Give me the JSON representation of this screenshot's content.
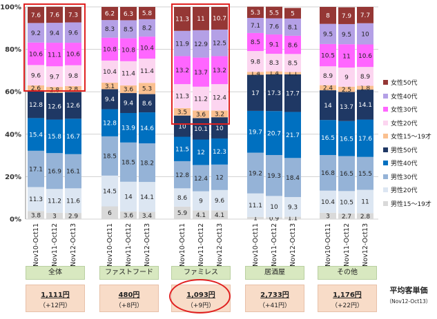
{
  "chart_data": {
    "type": "bar",
    "stacked": true,
    "ylim": [
      0,
      100
    ],
    "yticks": [
      "0%",
      "20%",
      "40%",
      "60%",
      "80%",
      "100%"
    ],
    "bar_labels": [
      "Nov10-Oct11",
      "Nov11-Oct12",
      "Nov12-Oct13"
    ],
    "series": [
      {
        "name": "男性15～19才",
        "color": "#d9d9d9"
      },
      {
        "name": "男性20代",
        "color": "#dce6f2"
      },
      {
        "name": "男性30代",
        "color": "#95b3d7"
      },
      {
        "name": "男性40代",
        "color": "#0070c0"
      },
      {
        "name": "男性50代",
        "color": "#1f3864"
      },
      {
        "name": "女性15～19才",
        "color": "#fac090"
      },
      {
        "name": "女性20代",
        "color": "#fcd5f0"
      },
      {
        "name": "女性30代",
        "color": "#ff66ff"
      },
      {
        "name": "女性40代",
        "color": "#b4a0e6"
      },
      {
        "name": "女性50代",
        "color": "#953735"
      }
    ],
    "groups": [
      {
        "name": "全体",
        "bars": [
          [
            3.8,
            11.3,
            17.1,
            15.4,
            12.8,
            2.6,
            9.6,
            10.6,
            9.2,
            7.6
          ],
          [
            3.0,
            11.2,
            16.9,
            15.8,
            12.6,
            2.8,
            9.7,
            11.1,
            9.4,
            7.6
          ],
          [
            2.9,
            11.6,
            16.1,
            16.7,
            12.6,
            2.8,
            9.8,
            10.6,
            9.6,
            7.3
          ]
        ]
      },
      {
        "name": "ファストフード",
        "bars": [
          [
            6.0,
            14.5,
            18.5,
            12.8,
            9.4,
            3.1,
            10.4,
            10.8,
            8.3,
            6.2
          ],
          [
            3.6,
            14.0,
            18.5,
            13.9,
            9.4,
            3.6,
            11.4,
            10.8,
            8.5,
            6.3
          ],
          [
            3.4,
            14.1,
            18.2,
            14.6,
            8.6,
            5.3,
            11.4,
            10.4,
            8.2,
            5.8
          ]
        ]
      },
      {
        "name": "ファミレス",
        "bars": [
          [
            5.9,
            8.6,
            12.8,
            11.5,
            10.0,
            3.5,
            11.3,
            13.2,
            11.9,
            11.3
          ],
          [
            4.1,
            9.0,
            12.4,
            12.0,
            10.1,
            3.6,
            11.2,
            13.7,
            12.9,
            11.0
          ],
          [
            4.1,
            9.6,
            12.0,
            12.3,
            10.0,
            3.2,
            12.4,
            13.2,
            12.5,
            10.7
          ]
        ]
      },
      {
        "name": "居酒屋",
        "bars": [
          [
            1.0,
            11.1,
            19.2,
            19.7,
            17.0,
            1.4,
            9.8,
            8.5,
            7.1,
            5.3
          ],
          [
            0.9,
            10.0,
            19.3,
            20.7,
            17.3,
            1.4,
            8.3,
            9.1,
            7.6,
            5.5
          ],
          [
            1.1,
            9.3,
            18.4,
            21.7,
            17.7,
            1.1,
            8.5,
            8.6,
            8.1,
            5.0
          ]
        ]
      },
      {
        "name": "その他",
        "bars": [
          [
            3.0,
            10.4,
            16.8,
            16.5,
            14.0,
            2.4,
            8.9,
            10.5,
            9.5,
            8.0
          ],
          [
            2.7,
            10.5,
            16.5,
            16.5,
            13.7,
            2.5,
            9.0,
            11.0,
            9.5,
            7.9
          ],
          [
            2.8,
            11.0,
            15.5,
            17.6,
            14.1,
            1.8,
            8.9,
            10.6,
            10.0,
            7.7
          ]
        ]
      }
    ]
  },
  "prices": [
    {
      "main": "1,111円",
      "sub": "（+12円）"
    },
    {
      "main": "480円",
      "sub": "（+8円）"
    },
    {
      "main": "1,093円",
      "sub": "（+9円）"
    },
    {
      "main": "2,733円",
      "sub": "（+41円）"
    },
    {
      "main": "1,176円",
      "sub": "（+22円）"
    }
  ],
  "avg_label": {
    "title": "平均客単価",
    "sub": "（Nov12-Oct13）"
  },
  "highlight_color": "#e02020",
  "legend_order": [
    "女性50代",
    "女性40代",
    "女性30代",
    "女性20代",
    "女性15～19才",
    "男性50代",
    "男性40代",
    "男性30代",
    "男性20代",
    "男性15～19才"
  ]
}
